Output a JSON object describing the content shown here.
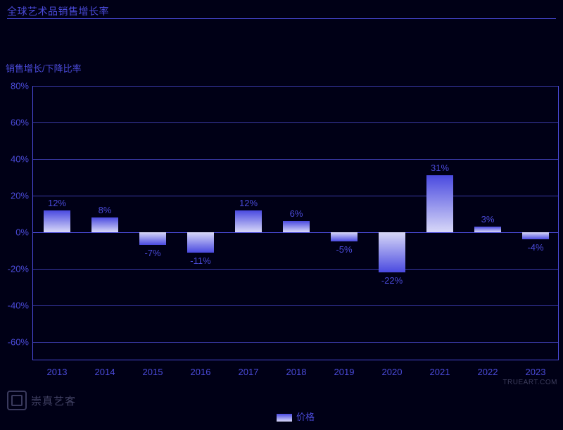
{
  "chart": {
    "type": "bar",
    "title": "全球艺术品销售增长率",
    "y_axis_title": "销售增长/下降比率",
    "background_color": "#000016",
    "primary_color": "#4a4ad8",
    "grid_color": "#3a3aa8",
    "bar_gradient_top": "#4a4ae0",
    "bar_gradient_bottom": "#d8d8f8",
    "font_size_title": 14,
    "font_size_axis": 13,
    "ylim": [
      -70,
      80
    ],
    "ytick_step": 20,
    "y_ticks": [
      80,
      60,
      40,
      20,
      0,
      -20,
      -40,
      -60
    ],
    "categories": [
      "2013",
      "2014",
      "2015",
      "2016",
      "2017",
      "2018",
      "2019",
      "2020",
      "2021",
      "2022",
      "2023"
    ],
    "values": [
      12,
      8,
      -7,
      -11,
      12,
      6,
      -5,
      -22,
      31,
      3,
      -4
    ],
    "value_labels": [
      "12%",
      "8%",
      "-7%",
      "-11%",
      "12%",
      "6%",
      "-5%",
      "-22%",
      "31%",
      "3%",
      "-4%"
    ],
    "bar_width_ratio": 0.55,
    "legend_label": "价格",
    "watermark_right": "TRUEART.COM",
    "watermark_left": "崇真艺客"
  }
}
